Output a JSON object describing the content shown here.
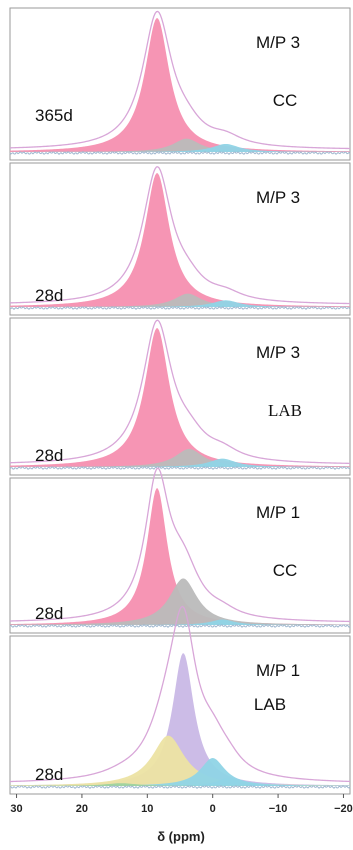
{
  "chart_data": {
    "type": "area",
    "xlabel": "δ (ppm)",
    "xlim": [
      31,
      -21
    ],
    "x_reversed": true,
    "x_ticks": [
      30,
      20,
      10,
      0,
      -10,
      -20
    ],
    "x_tick_labels": [
      "30",
      "20",
      "10",
      "0",
      "−10",
      "−20"
    ],
    "grid": false,
    "colors": {
      "pink": "#f58fb0",
      "gray": "#bbbbbb",
      "blue": "#8fd4e6",
      "purple": "#c9b8e6",
      "yellow": "#ece3a3",
      "green": "#9ed29e",
      "envelope": "#d8a6d8"
    },
    "panels": [
      {
        "label_left": "365d",
        "label_top": "M/P 3",
        "label_sub": "CC",
        "sub_font": "sans",
        "components": [
          {
            "color": "pink",
            "center": 8.5,
            "height": 1.0,
            "width": 2.3
          },
          {
            "color": "gray",
            "center": 4.0,
            "height": 0.1,
            "width": 2.5
          },
          {
            "color": "blue",
            "center": -2.0,
            "height": 0.06,
            "width": 2.5
          }
        ]
      },
      {
        "label_left": "28d",
        "label_top": "M/P 3",
        "label_sub": "",
        "sub_font": "sans",
        "components": [
          {
            "color": "pink",
            "center": 8.5,
            "height": 1.0,
            "width": 2.3
          },
          {
            "color": "gray",
            "center": 3.8,
            "height": 0.1,
            "width": 2.5
          },
          {
            "color": "blue",
            "center": -2.0,
            "height": 0.05,
            "width": 2.5
          }
        ]
      },
      {
        "label_left": "28d",
        "label_top": "M/P 3",
        "label_sub": "LAB",
        "sub_font": "serif",
        "components": [
          {
            "color": "pink",
            "center": 8.5,
            "height": 1.0,
            "width": 2.3
          },
          {
            "color": "gray",
            "center": 3.6,
            "height": 0.13,
            "width": 2.6
          },
          {
            "color": "blue",
            "center": -1.5,
            "height": 0.06,
            "width": 2.5
          }
        ]
      },
      {
        "label_left": "28d",
        "label_top": "M/P 1",
        "label_sub": "CC",
        "sub_font": "sans",
        "components": [
          {
            "color": "pink",
            "center": 8.5,
            "height": 1.0,
            "width": 1.9
          },
          {
            "color": "gray",
            "center": 4.5,
            "height": 0.34,
            "width": 2.6
          },
          {
            "color": "blue",
            "center": -1.5,
            "height": 0.04,
            "width": 2.2
          }
        ]
      },
      {
        "label_left": "28d",
        "label_top": "M/P 1",
        "label_sub": "LAB",
        "sub_font": "sans",
        "components": [
          {
            "color": "purple",
            "center": 4.5,
            "height": 0.95,
            "width": 2.0
          },
          {
            "color": "yellow",
            "center": 6.8,
            "height": 0.36,
            "width": 3.0
          },
          {
            "color": "blue",
            "center": 0.0,
            "height": 0.2,
            "width": 2.3
          },
          {
            "color": "blue",
            "center": -2.5,
            "height": 0.06,
            "width": 2.0
          },
          {
            "color": "green",
            "center": 14.0,
            "height": 0.02,
            "width": 3.0
          }
        ]
      }
    ]
  }
}
